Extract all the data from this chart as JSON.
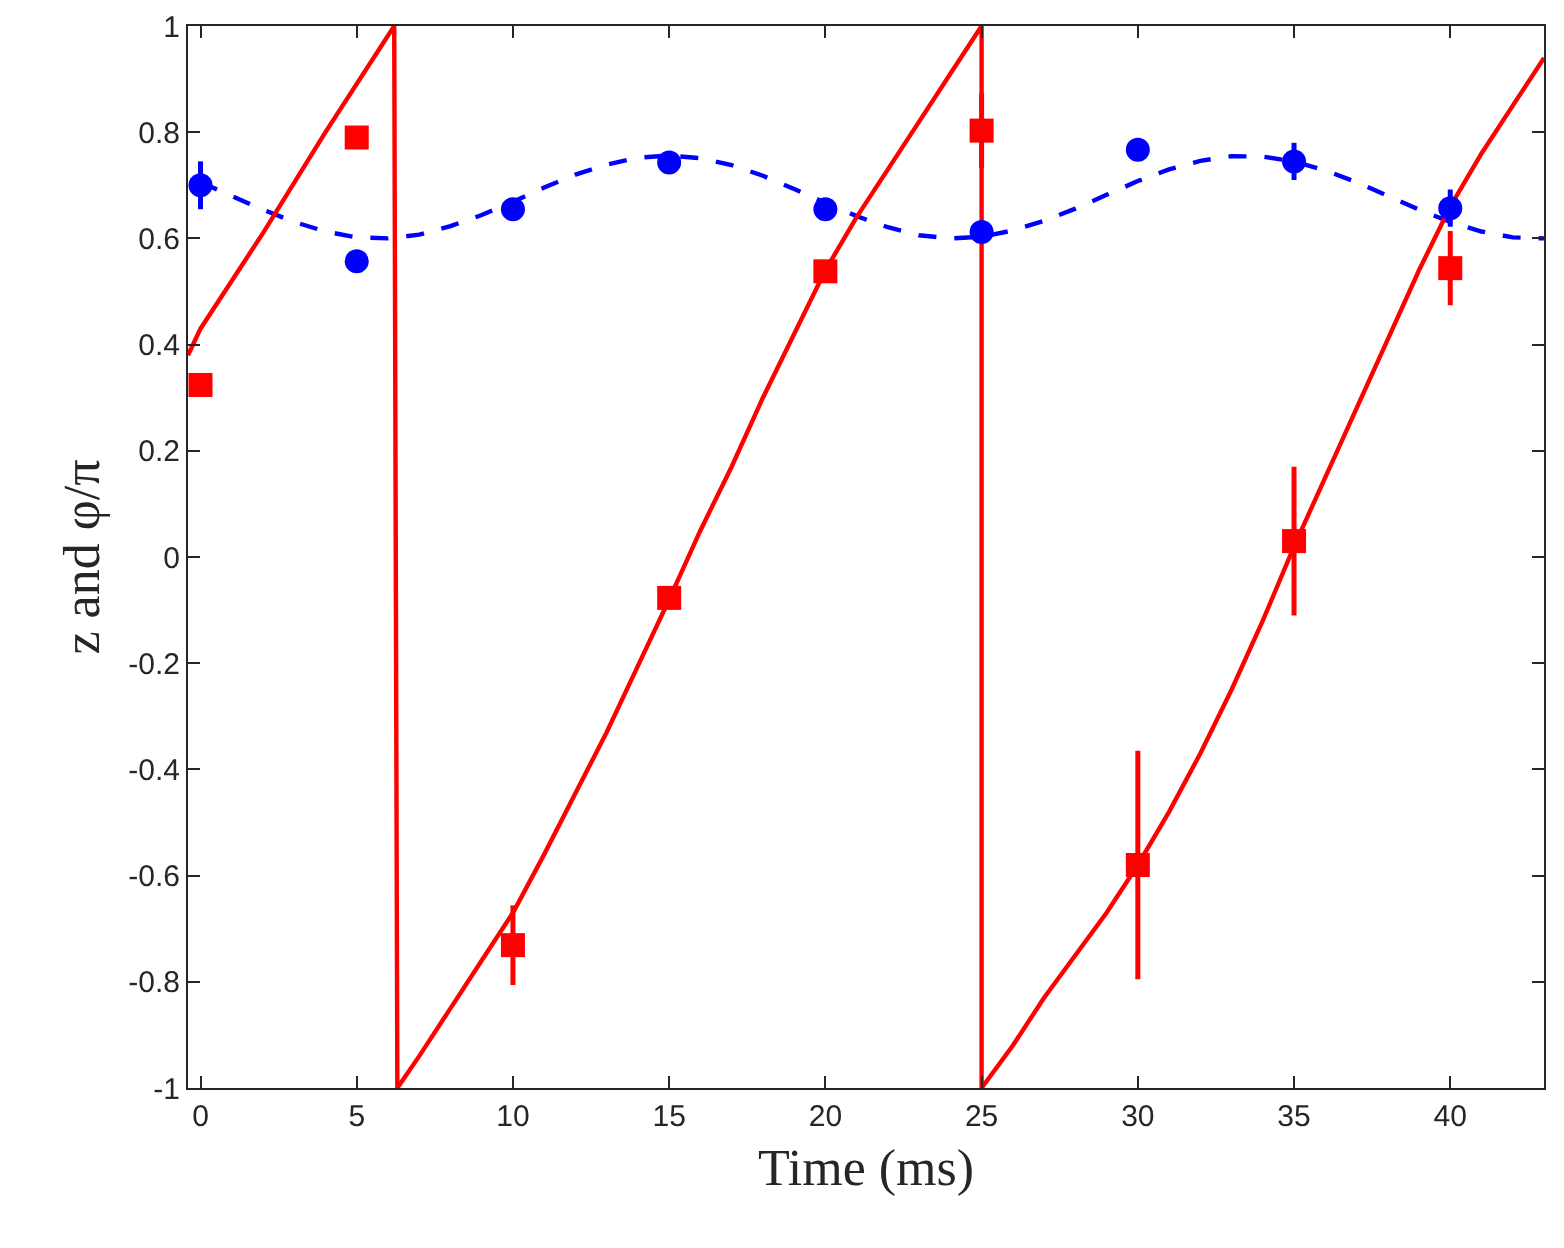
{
  "chart_data": {
    "type": "scatter",
    "xlabel": "Time (ms)",
    "ylabel": "z and φ/π",
    "xlim": [
      -0.4,
      43
    ],
    "ylim": [
      -1,
      1
    ],
    "xticks": [
      0,
      5,
      10,
      15,
      20,
      25,
      30,
      35,
      40
    ],
    "yticks": [
      -1,
      -0.8,
      -0.6,
      -0.4,
      -0.2,
      0,
      0.2,
      0.4,
      0.6,
      0.8,
      1
    ],
    "series": [
      {
        "type": "line",
        "color": "#0000ff",
        "line_style": "dashed",
        "marker": "none",
        "x": [
          0,
          1,
          2,
          3,
          4,
          5,
          6,
          7,
          8,
          9,
          10,
          11,
          12,
          13,
          14,
          15,
          16,
          17,
          18,
          19,
          20,
          21,
          22,
          23,
          24,
          25,
          26,
          27,
          28,
          29,
          30,
          31,
          32,
          33,
          34,
          35,
          36,
          37,
          38,
          39,
          40,
          41,
          42,
          43
        ],
        "values": [
          0.706,
          0.68,
          0.654,
          0.631,
          0.613,
          0.602,
          0.6,
          0.607,
          0.623,
          0.644,
          0.669,
          0.696,
          0.72,
          0.739,
          0.752,
          0.756,
          0.751,
          0.738,
          0.718,
          0.693,
          0.667,
          0.642,
          0.621,
          0.606,
          0.6,
          0.603,
          0.615,
          0.633,
          0.656,
          0.682,
          0.708,
          0.73,
          0.746,
          0.755,
          0.754,
          0.745,
          0.728,
          0.706,
          0.68,
          0.654,
          0.631,
          0.613,
          0.602,
          0.6
        ]
      },
      {
        "type": "line",
        "color": "#ff0000",
        "line_style": "solid",
        "marker": "none",
        "x": [
          -0.4,
          0,
          2,
          4,
          6.2,
          6.3,
          7,
          8,
          9,
          10,
          11,
          12,
          13,
          14,
          15,
          16,
          17,
          18,
          19,
          20,
          21,
          22,
          23,
          24,
          25,
          25,
          26,
          27,
          28,
          29,
          30,
          31,
          32,
          33,
          34,
          35,
          36,
          37,
          38,
          39,
          40,
          41,
          42,
          43
        ],
        "values": [
          0.38,
          0.43,
          0.61,
          0.8,
          1,
          -1,
          -0.94,
          -0.85,
          -0.76,
          -0.67,
          -0.56,
          -0.445,
          -0.33,
          -0.205,
          -0.08,
          0.05,
          0.17,
          0.3,
          0.42,
          0.54,
          0.64,
          0.73,
          0.82,
          0.91,
          1,
          -1,
          -0.92,
          -0.83,
          -0.75,
          -0.67,
          -0.58,
          -0.48,
          -0.37,
          -0.25,
          -0.12,
          0.02,
          0.15,
          0.28,
          0.41,
          0.54,
          0.66,
          0.76,
          0.85,
          0.94
        ]
      },
      {
        "type": "scatter",
        "color": "#0000ff",
        "marker": "circle",
        "x": [
          0,
          5,
          10,
          15,
          20,
          25,
          30,
          35,
          40
        ],
        "values": [
          0.7,
          0.557,
          0.655,
          0.743,
          0.655,
          0.612,
          0.767,
          0.745,
          0.657
        ],
        "errors": [
          0.045,
          null,
          null,
          null,
          null,
          null,
          null,
          0.035,
          0.035
        ]
      },
      {
        "type": "scatter",
        "color": "#ff0000",
        "marker": "square",
        "x": [
          0,
          5,
          10,
          15,
          20,
          25,
          30,
          35,
          40
        ],
        "values": [
          0.324,
          0.79,
          -0.731,
          -0.077,
          0.538,
          0.803,
          -0.58,
          0.03,
          0.544
        ],
        "errors": [
          null,
          0.02,
          0.075,
          null,
          null,
          0.07,
          0.215,
          0.14,
          0.07
        ]
      }
    ]
  }
}
